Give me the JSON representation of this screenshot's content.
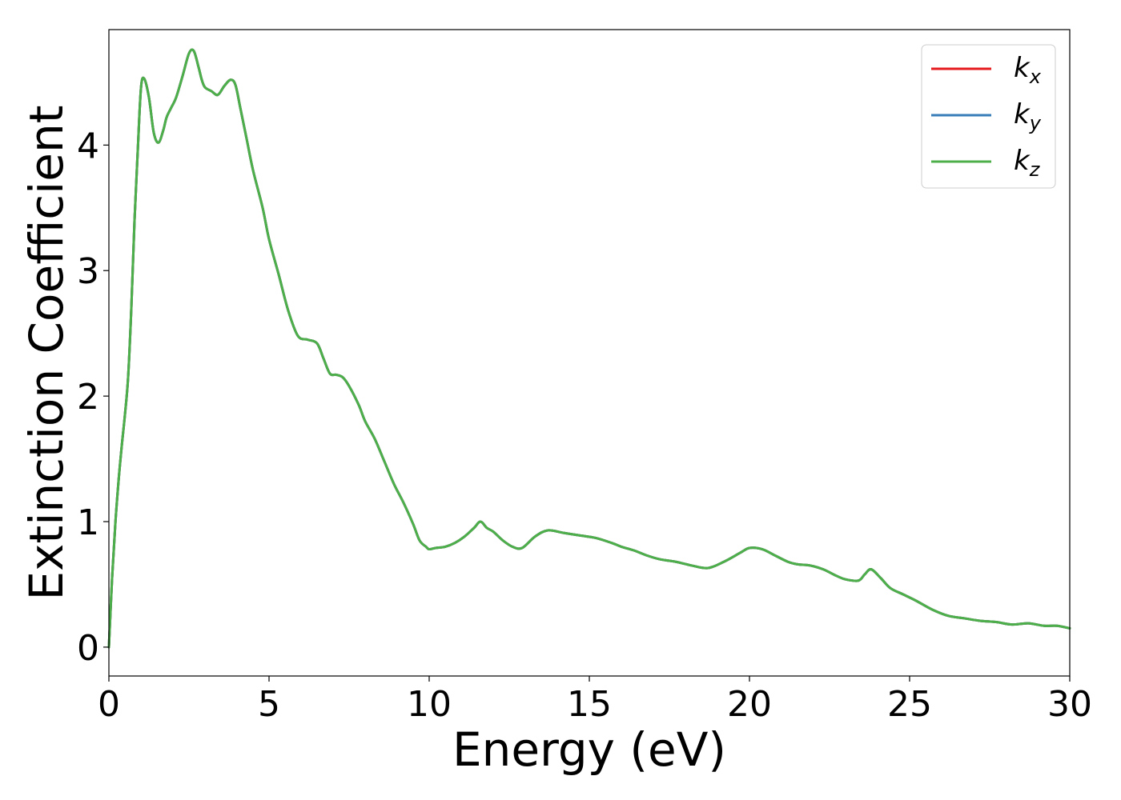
{
  "chart_data": {
    "type": "line",
    "title": "",
    "xlabel": "Energy (eV)",
    "ylabel": "Extinction Coefficient",
    "xlim": [
      0,
      30
    ],
    "ylim": [
      -0.23,
      4.92
    ],
    "xticks": [
      0,
      5,
      10,
      15,
      20,
      25,
      30
    ],
    "yticks": [
      0,
      1,
      2,
      3,
      4
    ],
    "grid": false,
    "legend_position": "top-right",
    "x": [
      0,
      0.1,
      0.2,
      0.3,
      0.4,
      0.5,
      0.6,
      0.7,
      0.8,
      0.9,
      1.0,
      1.1,
      1.25,
      1.4,
      1.55,
      1.7,
      1.8,
      1.95,
      2.1,
      2.3,
      2.5,
      2.65,
      2.8,
      2.9,
      3.0,
      3.2,
      3.4,
      3.6,
      3.8,
      3.95,
      4.1,
      4.3,
      4.5,
      4.8,
      5.0,
      5.3,
      5.6,
      5.9,
      6.2,
      6.5,
      6.7,
      6.9,
      7.1,
      7.3,
      7.5,
      7.8,
      8.0,
      8.3,
      8.6,
      8.9,
      9.2,
      9.5,
      9.7,
      9.9,
      10.0,
      10.2,
      10.5,
      10.8,
      11.1,
      11.4,
      11.6,
      11.8,
      12.0,
      12.3,
      12.6,
      12.9,
      13.3,
      13.7,
      14.2,
      14.7,
      15.2,
      15.7,
      16.0,
      16.4,
      16.8,
      17.2,
      17.7,
      18.2,
      18.7,
      19.2,
      19.7,
      20.0,
      20.4,
      20.8,
      21.2,
      21.5,
      21.9,
      22.3,
      22.7,
      23.0,
      23.4,
      23.6,
      23.8,
      24.1,
      24.4,
      24.8,
      25.2,
      25.7,
      26.2,
      26.7,
      27.2,
      27.7,
      28.2,
      28.7,
      29.2,
      29.6,
      30.0
    ],
    "series": [
      {
        "name": "k_x",
        "legend_label": "k",
        "legend_subscript": "x",
        "color": "#e41a1c",
        "y": [
          0.0,
          0.55,
          0.98,
          1.32,
          1.6,
          1.85,
          2.15,
          2.7,
          3.4,
          3.95,
          4.45,
          4.53,
          4.38,
          4.1,
          4.02,
          4.12,
          4.22,
          4.3,
          4.38,
          4.55,
          4.73,
          4.75,
          4.62,
          4.52,
          4.46,
          4.43,
          4.4,
          4.47,
          4.52,
          4.48,
          4.3,
          4.05,
          3.8,
          3.5,
          3.25,
          2.97,
          2.68,
          2.48,
          2.45,
          2.42,
          2.3,
          2.18,
          2.17,
          2.15,
          2.08,
          1.93,
          1.8,
          1.66,
          1.48,
          1.3,
          1.15,
          0.98,
          0.85,
          0.8,
          0.78,
          0.79,
          0.8,
          0.83,
          0.88,
          0.95,
          1.0,
          0.95,
          0.92,
          0.85,
          0.8,
          0.79,
          0.88,
          0.93,
          0.91,
          0.89,
          0.87,
          0.83,
          0.8,
          0.77,
          0.73,
          0.7,
          0.68,
          0.65,
          0.63,
          0.68,
          0.75,
          0.79,
          0.78,
          0.73,
          0.68,
          0.66,
          0.65,
          0.62,
          0.57,
          0.54,
          0.53,
          0.58,
          0.62,
          0.55,
          0.47,
          0.42,
          0.37,
          0.3,
          0.25,
          0.23,
          0.21,
          0.2,
          0.18,
          0.19,
          0.17,
          0.17,
          0.15
        ]
      },
      {
        "name": "k_y",
        "legend_label": "k",
        "legend_subscript": "y",
        "color": "#377eb8",
        "y": [
          0.0,
          0.55,
          0.98,
          1.32,
          1.6,
          1.85,
          2.15,
          2.7,
          3.4,
          3.95,
          4.45,
          4.53,
          4.38,
          4.1,
          4.02,
          4.12,
          4.22,
          4.3,
          4.38,
          4.55,
          4.73,
          4.75,
          4.62,
          4.52,
          4.46,
          4.43,
          4.4,
          4.47,
          4.52,
          4.48,
          4.3,
          4.05,
          3.8,
          3.5,
          3.25,
          2.97,
          2.68,
          2.48,
          2.45,
          2.42,
          2.3,
          2.18,
          2.17,
          2.15,
          2.08,
          1.93,
          1.8,
          1.66,
          1.48,
          1.3,
          1.15,
          0.98,
          0.85,
          0.8,
          0.78,
          0.79,
          0.8,
          0.83,
          0.88,
          0.95,
          1.0,
          0.95,
          0.92,
          0.85,
          0.8,
          0.79,
          0.88,
          0.93,
          0.91,
          0.89,
          0.87,
          0.83,
          0.8,
          0.77,
          0.73,
          0.7,
          0.68,
          0.65,
          0.63,
          0.68,
          0.75,
          0.79,
          0.78,
          0.73,
          0.68,
          0.66,
          0.65,
          0.62,
          0.57,
          0.54,
          0.53,
          0.58,
          0.62,
          0.55,
          0.47,
          0.42,
          0.37,
          0.3,
          0.25,
          0.23,
          0.21,
          0.2,
          0.18,
          0.19,
          0.17,
          0.17,
          0.15
        ]
      },
      {
        "name": "k_z",
        "legend_label": "k",
        "legend_subscript": "z",
        "color": "#4daf4a",
        "y": [
          0.0,
          0.55,
          0.98,
          1.32,
          1.6,
          1.85,
          2.15,
          2.7,
          3.4,
          3.95,
          4.45,
          4.53,
          4.38,
          4.1,
          4.02,
          4.12,
          4.22,
          4.3,
          4.38,
          4.55,
          4.73,
          4.75,
          4.62,
          4.52,
          4.46,
          4.43,
          4.4,
          4.47,
          4.52,
          4.48,
          4.3,
          4.05,
          3.8,
          3.5,
          3.25,
          2.97,
          2.68,
          2.48,
          2.45,
          2.42,
          2.3,
          2.18,
          2.17,
          2.15,
          2.08,
          1.93,
          1.8,
          1.66,
          1.48,
          1.3,
          1.15,
          0.98,
          0.85,
          0.8,
          0.78,
          0.79,
          0.8,
          0.83,
          0.88,
          0.95,
          1.0,
          0.95,
          0.92,
          0.85,
          0.8,
          0.79,
          0.88,
          0.93,
          0.91,
          0.89,
          0.87,
          0.83,
          0.8,
          0.77,
          0.73,
          0.7,
          0.68,
          0.65,
          0.63,
          0.68,
          0.75,
          0.79,
          0.78,
          0.73,
          0.68,
          0.66,
          0.65,
          0.62,
          0.57,
          0.54,
          0.53,
          0.58,
          0.62,
          0.55,
          0.47,
          0.42,
          0.37,
          0.3,
          0.25,
          0.23,
          0.21,
          0.2,
          0.18,
          0.19,
          0.17,
          0.17,
          0.15
        ]
      }
    ]
  }
}
